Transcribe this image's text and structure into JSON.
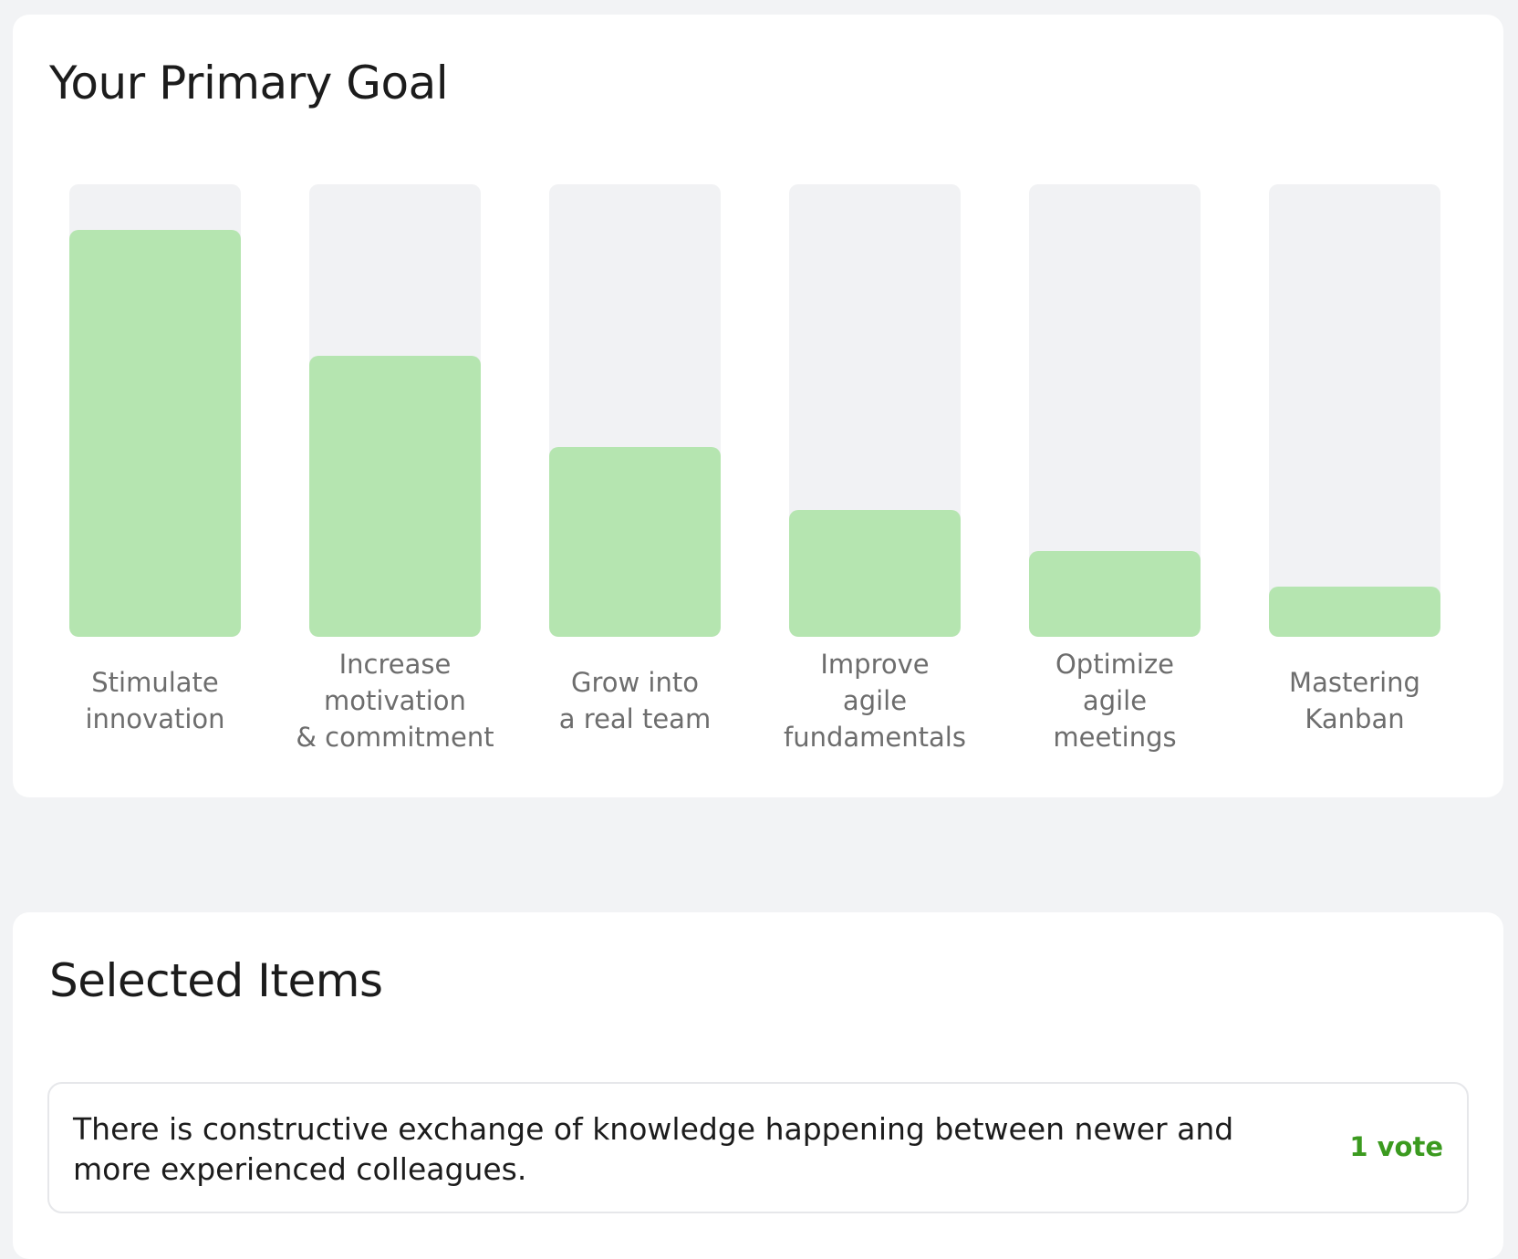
{
  "goal_section": {
    "title": "Your Primary Goal"
  },
  "chart_data": {
    "type": "bar",
    "categories": [
      "Stimulate\ninnovation",
      "Increase\nmotivation\n& commitment",
      "Grow into\na real team",
      "Improve\nagile\nfundamentals",
      "Optimize\nagile\nmeetings",
      "Mastering\nKanban"
    ],
    "values": [
      90,
      62,
      42,
      28,
      19,
      11
    ],
    "ylim": [
      0,
      100
    ],
    "bar_color": "#b5e5b0",
    "track_color": "#f1f2f4"
  },
  "items_section": {
    "title": "Selected Items",
    "items": [
      {
        "text": "There is constructive exchange of knowledge happening between newer and more experienced colleagues.",
        "votes": "1 vote"
      }
    ]
  }
}
